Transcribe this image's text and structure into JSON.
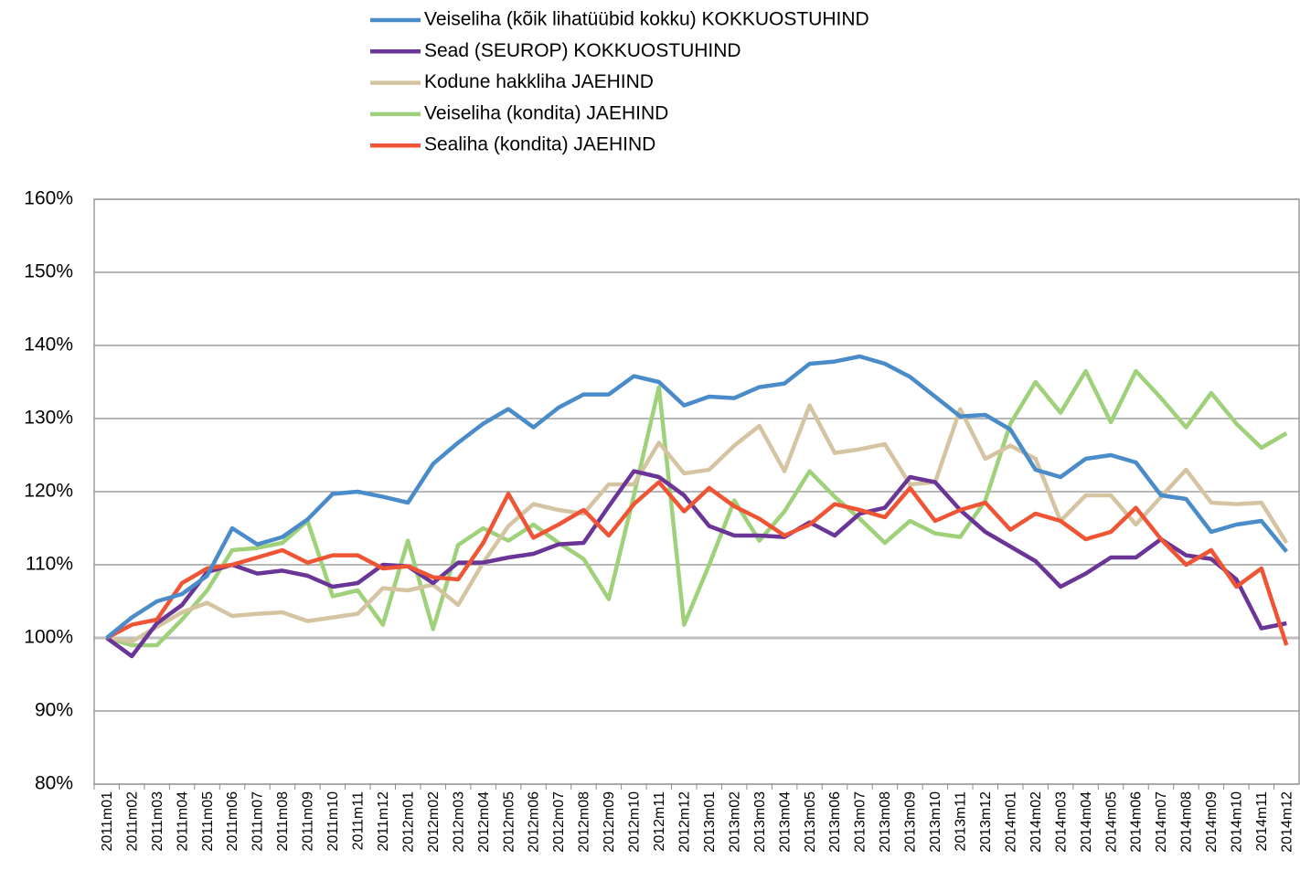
{
  "chart_data": {
    "type": "line",
    "categories": [
      "2011m01",
      "2011m02",
      "2011m03",
      "2011m04",
      "2011m05",
      "2011m06",
      "2011m07",
      "2011m08",
      "2011m09",
      "2011m10",
      "2011m11",
      "2011m12",
      "2012m01",
      "2012m02",
      "2012m03",
      "2012m04",
      "2012m05",
      "2012m06",
      "2012m07",
      "2012m08",
      "2012m09",
      "2012m10",
      "2012m11",
      "2012m12",
      "2013m01",
      "2013m02",
      "2013m03",
      "2013m04",
      "2013m05",
      "2013m06",
      "2013m07",
      "2013m08",
      "2013m09",
      "2013m10",
      "2013m11",
      "2013m12",
      "2014m01",
      "2014m02",
      "2014m03",
      "2014m04",
      "2014m05",
      "2014m06",
      "2014m07",
      "2014m08",
      "2014m09",
      "2014m10",
      "2014m11",
      "2014m12"
    ],
    "series": [
      {
        "name": "Veiseliha (kõik lihatüübid kokku) KOKKUOSTUHIND",
        "color": "#4a8bc9",
        "values": [
          100,
          102.8,
          105,
          106,
          108.5,
          115,
          112.8,
          113.8,
          116.2,
          119.7,
          120,
          119.3,
          118.5,
          123.8,
          126.7,
          129.3,
          131.3,
          128.8,
          131.5,
          133.3,
          133.3,
          135.8,
          135,
          131.8,
          133,
          132.8,
          134.3,
          134.8,
          137.5,
          137.8,
          138.5,
          137.5,
          135.7,
          133,
          130.3,
          130.5,
          128.5,
          123,
          122,
          124.5,
          125,
          124,
          119.5,
          119,
          114.5,
          115.5,
          116,
          111.8
        ]
      },
      {
        "name": "Sead (SEUROP) KOKKUOSTUHIND",
        "color": "#6a3596",
        "values": [
          100,
          97.5,
          102,
          104.5,
          109,
          110,
          108.8,
          109.2,
          108.5,
          107,
          107.5,
          110,
          109.8,
          107.5,
          110.3,
          110.3,
          111,
          111.5,
          112.8,
          113,
          118,
          122.8,
          122,
          119.5,
          115.3,
          114,
          114,
          113.8,
          115.8,
          114,
          117,
          117.8,
          122,
          121.3,
          117.5,
          114.5,
          112.5,
          110.5,
          107,
          108.8,
          111,
          111,
          113.5,
          111.3,
          110.8,
          108,
          101.3,
          102
        ]
      },
      {
        "name": "Kodune hakkliha JAEHIND",
        "color": "#d5c4a1",
        "values": [
          100,
          99.5,
          101.5,
          103.5,
          104.8,
          103,
          103.3,
          103.5,
          102.3,
          102.8,
          103.3,
          106.8,
          106.5,
          107.3,
          104.5,
          110.3,
          115.3,
          118.3,
          117.5,
          117,
          121,
          121,
          126.7,
          122.5,
          123,
          126.3,
          129,
          122.8,
          131.8,
          125.3,
          125.8,
          126.5,
          121,
          121.3,
          131.3,
          124.5,
          126.3,
          124.5,
          116,
          119.5,
          119.5,
          115.5,
          119.3,
          123,
          118.5,
          118.3,
          118.5,
          113
        ]
      },
      {
        "name": "Veiseliha (kondita) JAEHIND",
        "color": "#9fd07a",
        "values": [
          100,
          99,
          99,
          102.5,
          106.5,
          112,
          112.3,
          113,
          116,
          105.7,
          106.5,
          101.8,
          113.3,
          101.2,
          112.7,
          115,
          113.3,
          115.5,
          113,
          110.8,
          105.3,
          119.5,
          134.3,
          101.8,
          110,
          118.8,
          113.3,
          117.3,
          122.8,
          119.3,
          116.3,
          113,
          116,
          114.3,
          113.8,
          118.8,
          129.3,
          135,
          130.8,
          136.5,
          129.5,
          136.5,
          132.8,
          128.8,
          133.5,
          129.3,
          126,
          128
        ]
      },
      {
        "name": "Sealiha (kondita) JAEHIND",
        "color": "#ef5535",
        "values": [
          100,
          101.8,
          102.5,
          107.5,
          109.5,
          110,
          111,
          112,
          110.3,
          111.3,
          111.3,
          109.5,
          109.8,
          108.3,
          108,
          113,
          119.7,
          113.7,
          115.5,
          117.5,
          114,
          118.3,
          121.3,
          117.3,
          120.5,
          118,
          116.3,
          114,
          115.5,
          118.3,
          117.5,
          116.5,
          120.5,
          116,
          117.5,
          118.5,
          114.8,
          117,
          116,
          113.5,
          114.5,
          117.8,
          113.5,
          110,
          112,
          107,
          109.5,
          99
        ]
      }
    ],
    "ylim": [
      80,
      160
    ],
    "yticks": [
      {
        "value": 80,
        "label": "80%"
      },
      {
        "value": 90,
        "label": "90%"
      },
      {
        "value": 100,
        "label": "100%"
      },
      {
        "value": 110,
        "label": "110%"
      },
      {
        "value": 120,
        "label": "120%"
      },
      {
        "value": 130,
        "label": "130%"
      },
      {
        "value": 140,
        "label": "140%"
      },
      {
        "value": 150,
        "label": "150%"
      },
      {
        "value": 160,
        "label": "160%"
      }
    ],
    "grid": true,
    "legend": "top"
  }
}
